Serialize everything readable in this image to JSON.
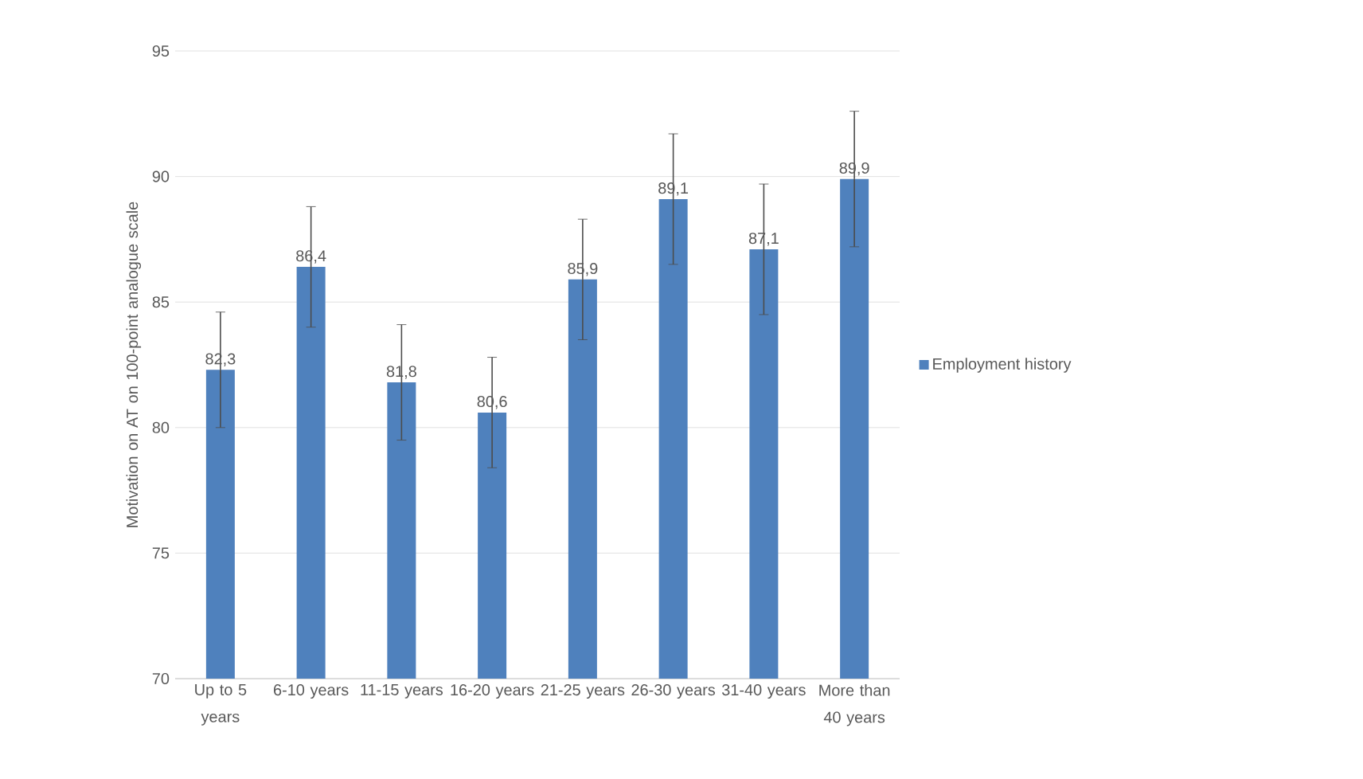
{
  "chart_data": {
    "type": "bar",
    "ylabel": "Motivation on AT on 100-point analogue scale",
    "categories": [
      "Up to 5 years",
      "6-10 years",
      "11-15 years",
      "16-20 years",
      "21-25 years",
      "26-30 years",
      "31-40 years",
      "More than 40 years"
    ],
    "series": [
      {
        "name": "Employment history",
        "color": "#4f81bd",
        "values": [
          82.3,
          86.4,
          81.8,
          80.6,
          85.9,
          89.1,
          87.1,
          89.9
        ],
        "errors": [
          2.3,
          2.4,
          2.3,
          2.2,
          2.4,
          2.6,
          2.6,
          2.7
        ],
        "value_labels": [
          "82,3",
          "86,4",
          "81,8",
          "80,6",
          "85,9",
          "89,1",
          "87,1",
          "89,9"
        ]
      }
    ],
    "ylim": [
      70,
      95
    ],
    "yticks": [
      70,
      75,
      80,
      85,
      90,
      95
    ],
    "grid": "y",
    "legend": "right"
  }
}
